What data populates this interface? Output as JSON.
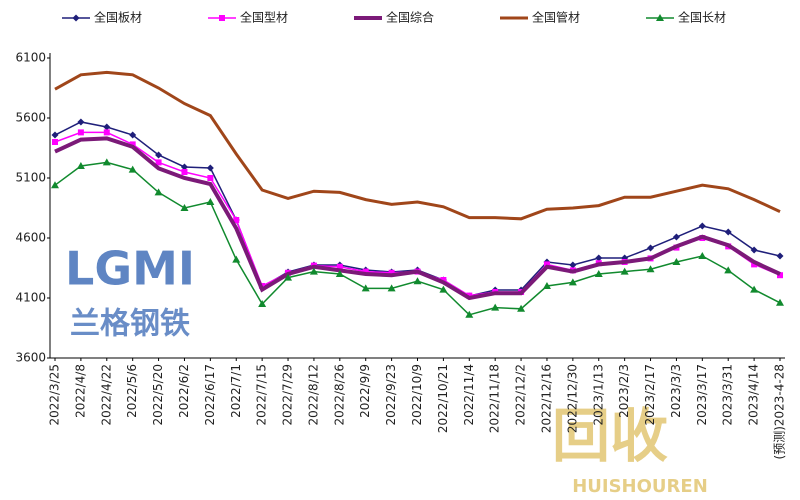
{
  "chart_data": {
    "type": "line",
    "categories": [
      "2022/3/25",
      "2022/4/8",
      "2022/4/22",
      "2022/5/6",
      "2022/5/20",
      "2022/6/2",
      "2022/6/17",
      "2022/7/1",
      "2022/7/15",
      "2022/7/29",
      "2022/8/12",
      "2022/8/26",
      "2022/9/9",
      "2022/9/23",
      "2022/10/9",
      "2022/10/21",
      "2022/11/4",
      "2022/11/18",
      "2022/12/2",
      "2022/12/16",
      "2022/12/30",
      "2023/1/13",
      "2023/2/3",
      "2023/2/17",
      "2023/3/3",
      "2023/3/17",
      "2023/3/31",
      "2023/4/14",
      "(预测)2023-4-28"
    ],
    "series": [
      {
        "name": "全国板材",
        "color": "#1f1f7a",
        "marker": "diamond",
        "values": [
          5458,
          5567,
          5525,
          5458,
          5292,
          5192,
          5183,
          4750,
          4192,
          4317,
          4375,
          4375,
          4333,
          4317,
          4333,
          4250,
          4117,
          4167,
          4167,
          4400,
          4375,
          4433,
          4433,
          4517,
          4608,
          4700,
          4650,
          4500,
          4450
        ]
      },
      {
        "name": "全国型材",
        "color": "#ff00ff",
        "marker": "square",
        "values": [
          5400,
          5480,
          5480,
          5380,
          5230,
          5150,
          5100,
          4750,
          4200,
          4310,
          4370,
          4360,
          4320,
          4310,
          4320,
          4250,
          4120,
          4150,
          4150,
          4380,
          4330,
          4390,
          4400,
          4430,
          4520,
          4600,
          4530,
          4380,
          4290
        ]
      },
      {
        "name": "全国综合",
        "color": "#7b1a78",
        "marker": "none",
        "values": [
          5320,
          5420,
          5430,
          5360,
          5180,
          5100,
          5050,
          4680,
          4170,
          4300,
          4360,
          4330,
          4300,
          4290,
          4320,
          4230,
          4100,
          4140,
          4140,
          4360,
          4320,
          4380,
          4400,
          4430,
          4530,
          4610,
          4540,
          4400,
          4300
        ]
      },
      {
        "name": "全国管材",
        "color": "#a0461a",
        "marker": "none",
        "values": [
          5840,
          5960,
          5980,
          5960,
          5850,
          5720,
          5620,
          5300,
          5000,
          4930,
          4990,
          4980,
          4920,
          4880,
          4900,
          4860,
          4770,
          4770,
          4760,
          4840,
          4850,
          4870,
          4940,
          4940,
          4990,
          5040,
          5010,
          4920,
          4820
        ]
      },
      {
        "name": "全国长材",
        "color": "#118a2e",
        "marker": "triangle",
        "values": [
          5040,
          5200,
          5230,
          5170,
          4980,
          4850,
          4900,
          4420,
          4050,
          4270,
          4320,
          4300,
          4180,
          4180,
          4240,
          4170,
          3960,
          4020,
          4010,
          4200,
          4230,
          4300,
          4320,
          4340,
          4400,
          4450,
          4330,
          4170,
          4060
        ]
      }
    ],
    "ylim": [
      3600,
      6100
    ],
    "yticks": [
      3600,
      4100,
      4600,
      5100,
      5600,
      6100
    ],
    "grid": false,
    "logo_text": "LGMI",
    "logo_subtitle": "兰格钢铁",
    "watermark": "回收",
    "watermark_sub": "HUISHOUREN"
  }
}
